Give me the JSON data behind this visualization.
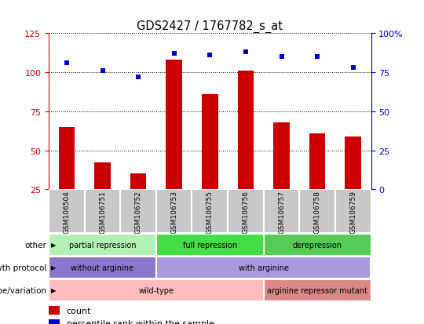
{
  "title": "GDS2427 / 1767782_s_at",
  "samples": [
    "GSM106504",
    "GSM106751",
    "GSM106752",
    "GSM106753",
    "GSM106755",
    "GSM106756",
    "GSM106757",
    "GSM106758",
    "GSM106759"
  ],
  "bar_heights": [
    65,
    42,
    35,
    108,
    86,
    101,
    68,
    61,
    59
  ],
  "percentile_ranks": [
    81,
    76,
    72,
    87,
    86,
    88,
    85,
    85,
    78
  ],
  "ylim_left": [
    25,
    125
  ],
  "ylim_right": [
    0,
    100
  ],
  "yticks_left": [
    25,
    50,
    75,
    100,
    125
  ],
  "yticks_right": [
    0,
    25,
    50,
    75,
    100
  ],
  "bar_color": "#cc0000",
  "dot_color": "#0000cc",
  "annotation_rows": [
    {
      "label": "other",
      "groups": [
        {
          "text": "partial repression",
          "start": 0,
          "end": 3,
          "color": "#b3f0b3"
        },
        {
          "text": "full repression",
          "start": 3,
          "end": 6,
          "color": "#44dd44"
        },
        {
          "text": "derepression",
          "start": 6,
          "end": 9,
          "color": "#55cc55"
        }
      ]
    },
    {
      "label": "growth protocol",
      "groups": [
        {
          "text": "without arginine",
          "start": 0,
          "end": 3,
          "color": "#8877cc"
        },
        {
          "text": "with arginine",
          "start": 3,
          "end": 9,
          "color": "#aa99dd"
        }
      ]
    },
    {
      "label": "genotype/variation",
      "groups": [
        {
          "text": "wild-type",
          "start": 0,
          "end": 6,
          "color": "#ffbbbb"
        },
        {
          "text": "arginine repressor mutant",
          "start": 6,
          "end": 9,
          "color": "#dd8888"
        }
      ]
    }
  ],
  "legend_items": [
    {
      "color": "#cc0000",
      "label": "count"
    },
    {
      "color": "#0000cc",
      "label": "percentile rank within the sample"
    }
  ],
  "tick_label_bg": "#c8c8c8",
  "left_axis_color": "#cc0000",
  "right_axis_color": "#0000cc"
}
